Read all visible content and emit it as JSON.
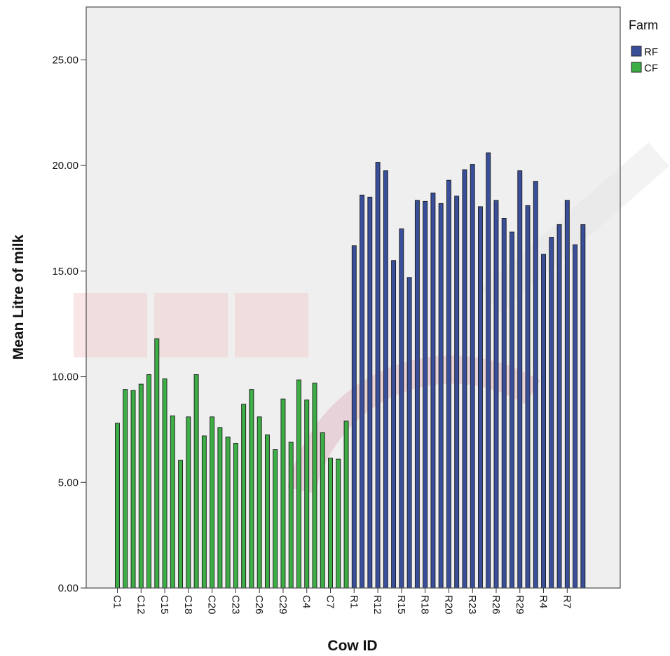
{
  "chart_data": {
    "type": "bar",
    "title": "",
    "xlabel": "Cow ID",
    "ylabel": "Mean Litre of milk",
    "ylim": [
      0,
      27.5
    ],
    "y_ticks": [
      "0.00",
      "5.00",
      "10.00",
      "15.00",
      "20.00",
      "25.00"
    ],
    "y_tick_values": [
      0,
      5,
      10,
      15,
      20,
      25
    ],
    "grid": false,
    "legend": {
      "title": "Farm",
      "placement": "top-right, outside plot",
      "entries": [
        {
          "label": "RF",
          "color": "#3a4f9a"
        },
        {
          "label": "CF",
          "color": "#3cae45"
        }
      ]
    },
    "x_tick_labels": [
      "C1",
      "C12",
      "C15",
      "C18",
      "C20",
      "C23",
      "C26",
      "C29",
      "C4",
      "C7",
      "R1",
      "R12",
      "R15",
      "R18",
      "R20",
      "R23",
      "R26",
      "R29",
      "R4",
      "R7"
    ],
    "series": [
      {
        "name": "CF",
        "color": "#3cae45",
        "values": [
          7.8,
          9.4,
          9.35,
          9.65,
          10.1,
          11.8,
          9.9,
          8.15,
          6.05,
          8.1,
          10.1,
          7.2,
          8.1,
          7.6,
          7.15,
          6.85,
          8.7,
          9.4,
          8.1,
          7.25,
          6.55,
          8.95,
          6.9,
          9.85,
          8.9,
          9.7,
          7.35,
          6.15,
          6.1,
          7.9
        ]
      },
      {
        "name": "RF",
        "color": "#3a4f9a",
        "values": [
          16.2,
          18.6,
          18.5,
          20.15,
          19.75,
          15.5,
          17.0,
          14.7,
          18.35,
          18.3,
          18.7,
          18.2,
          19.3,
          18.55,
          19.8,
          20.05,
          18.05,
          20.6,
          18.35,
          17.5,
          16.85,
          19.75,
          18.1,
          19.25,
          15.8,
          16.6,
          17.2,
          18.35,
          16.25,
          17.2
        ]
      }
    ]
  },
  "watermark": {
    "text": "UPM",
    "text_color": "#e8a0a0",
    "box_color": "#f3c8c8"
  },
  "colors": {
    "plot_background": "#efefef",
    "frame": "#4d4d4d"
  }
}
